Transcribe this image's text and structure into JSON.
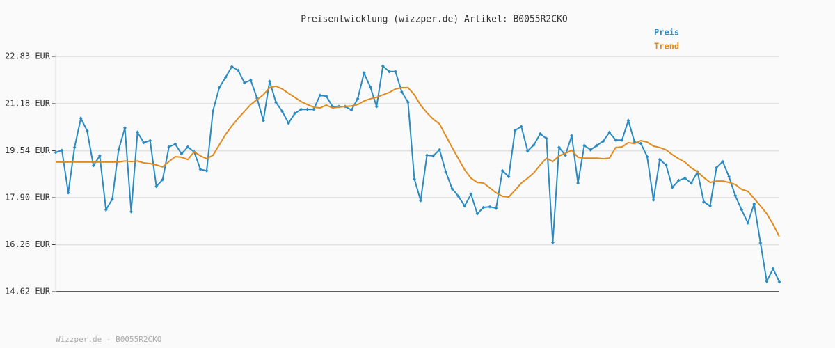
{
  "chart_data": {
    "type": "line",
    "title": "Preisentwicklung (wizzper.de) Artikel: B0055R2CKO",
    "footer": "Wizzper.de - B0055R2CKO",
    "categories": [
      null,
      null,
      null,
      null,
      null,
      null,
      null,
      null,
      null,
      null,
      null,
      null,
      null,
      null,
      null,
      null,
      null,
      null,
      null,
      null,
      null,
      null,
      null,
      null,
      null,
      null,
      null,
      null,
      null,
      null,
      null,
      null,
      null,
      null,
      null,
      null,
      null,
      null,
      null,
      null,
      null,
      null,
      null,
      null,
      null,
      null,
      null,
      null,
      null,
      null,
      null,
      null,
      null,
      null,
      null,
      null,
      null,
      null,
      null,
      null,
      null,
      null,
      null,
      null,
      null,
      null,
      null,
      null,
      null,
      null,
      null,
      null,
      null,
      null,
      null,
      null,
      null,
      null,
      null,
      null,
      null,
      null,
      null,
      null,
      null,
      null,
      null,
      null,
      null,
      null,
      null,
      null,
      null,
      null,
      null,
      null,
      null,
      null,
      null,
      null,
      null,
      null,
      null,
      null,
      null,
      null,
      null,
      null,
      null,
      null,
      null,
      null,
      null,
      null,
      null,
      null
    ],
    "series": [
      {
        "name": "Preis",
        "color": "#2a8bc2",
        "markers": true,
        "values": [
          19.48,
          19.55,
          18.07,
          19.65,
          20.67,
          20.23,
          19.02,
          19.36,
          17.48,
          17.85,
          19.57,
          20.33,
          17.41,
          20.18,
          19.82,
          19.89,
          18.29,
          18.53,
          19.67,
          19.77,
          19.43,
          19.67,
          19.5,
          18.89,
          18.84,
          20.93,
          21.74,
          22.1,
          22.47,
          22.34,
          21.91,
          22.0,
          21.37,
          20.59,
          21.96,
          21.23,
          20.91,
          20.5,
          20.84,
          20.98,
          20.98,
          20.98,
          21.47,
          21.44,
          21.08,
          21.08,
          21.08,
          20.96,
          21.35,
          22.25,
          21.76,
          21.08,
          22.49,
          22.3,
          22.3,
          21.59,
          21.23,
          18.55,
          17.8,
          19.38,
          19.36,
          19.57,
          18.8,
          18.21,
          17.95,
          17.61,
          18.02,
          17.34,
          17.56,
          17.58,
          17.53,
          18.84,
          18.63,
          20.25,
          20.38,
          19.53,
          19.74,
          20.13,
          19.96,
          16.34,
          19.65,
          19.38,
          20.06,
          18.41,
          19.72,
          19.57,
          19.72,
          19.87,
          20.18,
          19.91,
          19.91,
          20.59,
          19.84,
          19.79,
          19.33,
          17.82,
          19.23,
          19.04,
          18.26,
          18.5,
          18.58,
          18.41,
          18.8,
          17.75,
          17.61,
          18.94,
          19.16,
          18.63,
          17.97,
          17.48,
          17.02,
          17.68,
          16.32,
          14.98,
          15.42,
          14.96
        ]
      },
      {
        "name": "Trend",
        "color": "#e08a1e",
        "markers": false,
        "values": [
          19.14,
          19.14,
          19.14,
          19.14,
          19.14,
          19.14,
          19.14,
          19.14,
          19.14,
          19.14,
          19.14,
          19.18,
          19.16,
          19.18,
          19.11,
          19.09,
          19.04,
          18.97,
          19.16,
          19.33,
          19.31,
          19.23,
          19.5,
          19.36,
          19.26,
          19.38,
          19.74,
          20.11,
          20.4,
          20.67,
          20.91,
          21.15,
          21.32,
          21.49,
          21.74,
          21.79,
          21.69,
          21.54,
          21.4,
          21.25,
          21.15,
          21.06,
          21.03,
          21.13,
          21.03,
          21.06,
          21.08,
          21.1,
          21.15,
          21.27,
          21.35,
          21.4,
          21.49,
          21.57,
          21.69,
          21.74,
          21.74,
          21.49,
          21.13,
          20.86,
          20.64,
          20.47,
          20.06,
          19.65,
          19.26,
          18.87,
          18.58,
          18.43,
          18.41,
          18.24,
          18.07,
          17.95,
          17.92,
          18.16,
          18.41,
          18.58,
          18.77,
          19.04,
          19.28,
          19.16,
          19.36,
          19.45,
          19.55,
          19.31,
          19.28,
          19.28,
          19.28,
          19.26,
          19.28,
          19.65,
          19.67,
          19.82,
          19.79,
          19.89,
          19.84,
          19.7,
          19.65,
          19.57,
          19.4,
          19.26,
          19.14,
          18.94,
          18.8,
          18.6,
          18.43,
          18.48,
          18.48,
          18.43,
          18.36,
          18.19,
          18.12,
          17.87,
          17.61,
          17.34,
          16.97,
          16.54
        ]
      }
    ],
    "ylim": [
      14.62,
      22.83
    ],
    "yticks": [
      {
        "value": 14.62,
        "label": "14.62 EUR"
      },
      {
        "value": 16.26,
        "label": "16.26 EUR"
      },
      {
        "value": 17.9,
        "label": "17.90 EUR"
      },
      {
        "value": 19.54,
        "label": "19.54 EUR"
      },
      {
        "value": 21.18,
        "label": "21.18 EUR"
      },
      {
        "value": 22.83,
        "label": "22.83 EUR"
      }
    ],
    "grid": true
  }
}
